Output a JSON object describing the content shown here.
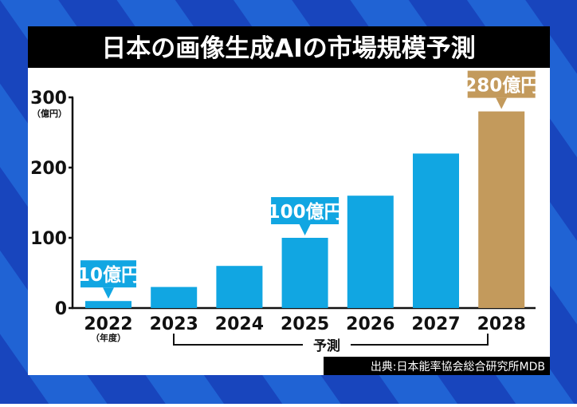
{
  "chart_data": {
    "type": "bar",
    "title": "日本の画像生成AIの市場規模予測",
    "categories": [
      "2022",
      "2023",
      "2024",
      "2025",
      "2026",
      "2027",
      "2028"
    ],
    "values": [
      10,
      30,
      60,
      100,
      160,
      220,
      280
    ],
    "y_unit": "（億円）",
    "x_unit": "（年度）",
    "ylim": [
      0,
      300
    ],
    "yticks": [
      "0",
      "100",
      "200",
      "300"
    ],
    "grid": false,
    "callouts": [
      {
        "category": "2022",
        "text": "10億円"
      },
      {
        "category": "2025",
        "text": "100億円"
      },
      {
        "category": "2028",
        "text": "280億円"
      }
    ],
    "forecast_bracket": {
      "from": "2023",
      "to": "2028",
      "label": "予測"
    },
    "source": "出典:日本能率協会総合研究所MDB",
    "colors": {
      "bar": "#11a6e2",
      "highlight": "#c39a5c",
      "background": "#1a4fc4",
      "title_bg": "#000000"
    }
  }
}
